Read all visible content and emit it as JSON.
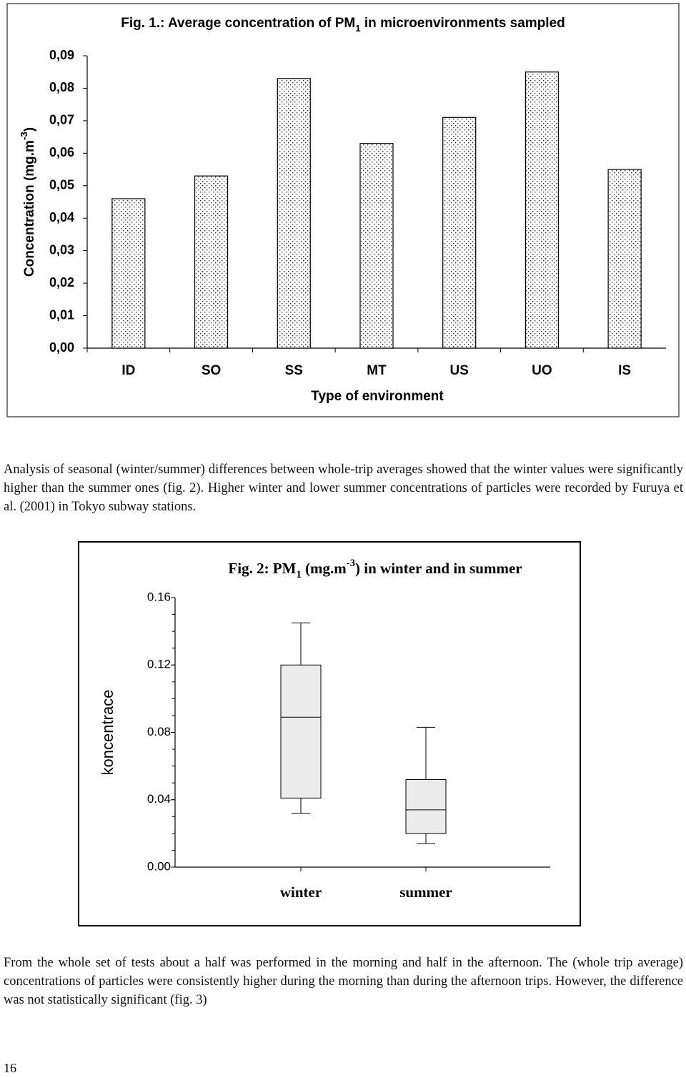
{
  "chart_data": [
    {
      "type": "bar",
      "title": [
        {
          "text": "Fig. 1.: Average concentration of PM"
        },
        {
          "text": "1",
          "script": "sub"
        },
        {
          "text": " in microenvironments sampled"
        }
      ],
      "y_label": [
        {
          "text": "Concentration (mg.m"
        },
        {
          "text": "-3",
          "script": "super"
        },
        {
          "text": ")"
        }
      ],
      "x_label": "Type of environment",
      "categories": [
        "ID",
        "SO",
        "SS",
        "MT",
        "US",
        "UO",
        "IS"
      ],
      "values": [
        0.046,
        0.053,
        0.083,
        0.063,
        0.071,
        0.085,
        0.055
      ],
      "ylim": [
        0,
        0.09
      ],
      "yticks": [
        {
          "value": 0,
          "label": "0,00"
        },
        {
          "value": 0.01,
          "label": "0,01"
        },
        {
          "value": 0.02,
          "label": "0,02"
        },
        {
          "value": 0.03,
          "label": "0,03"
        },
        {
          "value": 0.04,
          "label": "0,04"
        },
        {
          "value": 0.05,
          "label": "0,05"
        },
        {
          "value": 0.06,
          "label": "0,06"
        },
        {
          "value": 0.07,
          "label": "0,07"
        },
        {
          "value": 0.08,
          "label": "0,08"
        },
        {
          "value": 0.09,
          "label": "0,09"
        }
      ],
      "color": "#000000",
      "grid": false
    },
    {
      "type": "box",
      "title": [
        {
          "text": "Fig. 2: PM"
        },
        {
          "text": "1",
          "script": "sub"
        },
        {
          "text": " (mg.m"
        },
        {
          "text": "-3",
          "script": "super"
        },
        {
          "text": ") in winter and in summer"
        }
      ],
      "y_label": [
        {
          "text": "koncentrace"
        }
      ],
      "categories": [
        "winter",
        "summer"
      ],
      "boxes": [
        {
          "min": 0.032,
          "q1": 0.041,
          "median": 0.089,
          "q3": 0.12,
          "max": 0.145
        },
        {
          "min": 0.014,
          "q1": 0.02,
          "median": 0.034,
          "q3": 0.052,
          "max": 0.083
        }
      ],
      "ylim": [
        0,
        0.16
      ],
      "yticks": [
        {
          "value": 0,
          "label": "0.00"
        },
        0.04,
        0.08,
        0.12,
        0.16
      ],
      "color": "#ececec",
      "grid": false
    }
  ],
  "paragraphs": [
    "Analysis of seasonal (winter/summer) differences between whole-trip averages showed that the winter values were significantly higher than the summer ones (fig. 2). Higher winter and lower summer concentrations of particles were recorded by Furuya et al. (2001) in Tokyo subway stations.",
    "From the whole set of tests about a half was performed in the morning and half in the afternoon. The (whole trip average) concentrations of particles were consistently higher during the morning than during the afternoon trips. However, the difference was not statistically significant (fig. 3)"
  ],
  "page_number": "16"
}
